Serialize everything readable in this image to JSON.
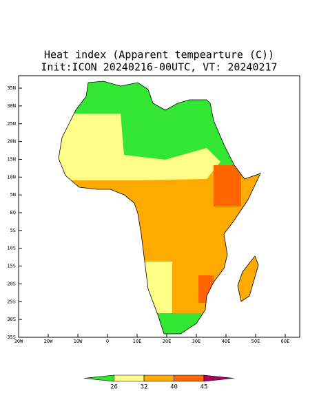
{
  "title": "Heat index (Apparent tempearture (C))",
  "subtitle": "Init:ICON 20240216-00UTC, VT: 20240217",
  "map": {
    "lon_ticks": [
      {
        "value": -30,
        "label": "30W"
      },
      {
        "value": -20,
        "label": "20W"
      },
      {
        "value": -10,
        "label": "10W"
      },
      0,
      {
        "value": 10,
        "label": "10E"
      },
      {
        "value": 20,
        "label": "20E"
      },
      {
        "value": 30,
        "label": "30E"
      },
      {
        "value": 40,
        "label": "40E"
      },
      {
        "value": 50,
        "label": "50E"
      },
      {
        "value": 60,
        "label": "60E"
      }
    ],
    "lat_ticks": [
      {
        "value": 35,
        "label": "35N"
      },
      {
        "value": 30,
        "label": "30N"
      },
      {
        "value": 25,
        "label": "25N"
      },
      {
        "value": 20,
        "label": "20N"
      },
      {
        "value": 15,
        "label": "15N"
      },
      {
        "value": 10,
        "label": "10N"
      },
      {
        "value": 5,
        "label": "5N"
      },
      {
        "value": 0,
        "label": "EQ"
      },
      {
        "value": -5,
        "label": "5S"
      },
      {
        "value": -10,
        "label": "10S"
      },
      {
        "value": -15,
        "label": "15S"
      },
      {
        "value": -20,
        "label": "20S"
      },
      {
        "value": -25,
        "label": "25S"
      },
      {
        "value": -30,
        "label": "30S"
      },
      {
        "value": -35,
        "label": "35S"
      }
    ]
  },
  "colorbar": {
    "levels": [
      26,
      32,
      40,
      45
    ],
    "colors": [
      "#33e633",
      "#ffff88",
      "#ffaa00",
      "#ff6600",
      "#aa0066"
    ]
  }
}
